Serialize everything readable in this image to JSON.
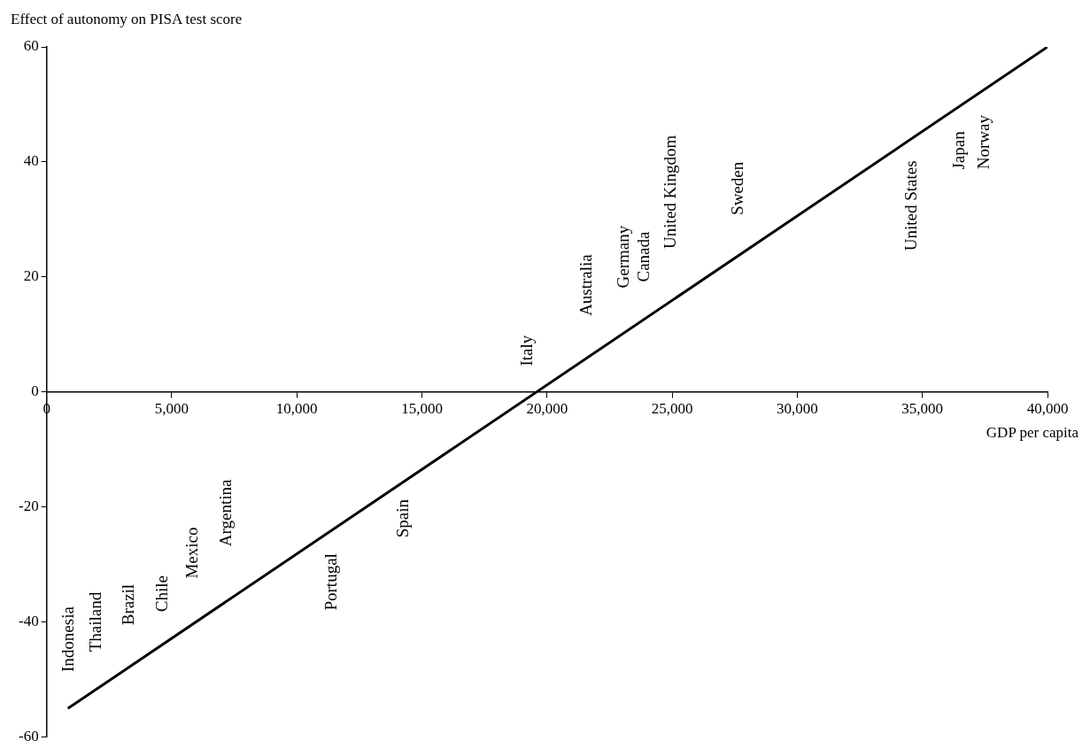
{
  "chart_data": {
    "type": "line",
    "ylabel": "Effect of autonomy on PISA test score",
    "xlabel": "GDP per capita",
    "series": [
      {
        "x": [
          850,
          40000
        ],
        "values": [
          -55,
          60
        ],
        "color": "#000000"
      }
    ],
    "xlim": [
      0,
      40000
    ],
    "xticks": [
      0,
      {
        "value": 5000,
        "label": "5,000"
      },
      {
        "value": 10000,
        "label": "10,000"
      },
      {
        "value": 15000,
        "label": "15,000"
      },
      {
        "value": 20000,
        "label": "20,000"
      },
      {
        "value": 25000,
        "label": "25,000"
      },
      {
        "value": 30000,
        "label": "30,000"
      },
      {
        "value": 35000,
        "label": "35,000"
      },
      {
        "value": 40000,
        "label": "40,000"
      }
    ],
    "ylim": [
      -60,
      60
    ],
    "yticks": [
      -60,
      -40,
      -20,
      0,
      20,
      40,
      60
    ],
    "grid": false,
    "legend": false,
    "marker": "none",
    "line_style": "solid",
    "annotations": [
      "Indonesia",
      "Thailand",
      "Brazil",
      "Chile",
      "Mexico",
      "Argentina",
      "Portugal",
      "Spain",
      "Italy",
      "Australia",
      "Germany",
      "Canada",
      "United Kingdom",
      "Sweden",
      "United States",
      "Japan",
      "Norway"
    ]
  }
}
